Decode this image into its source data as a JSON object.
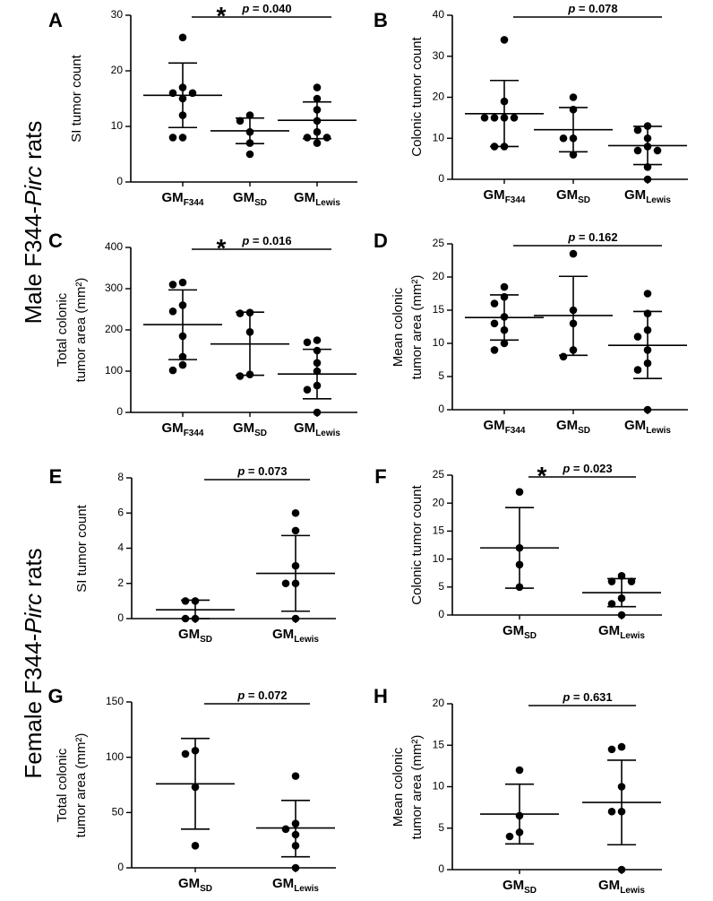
{
  "row_labels": [
    {
      "prefix": "Male F344-",
      "italic": "Pirc",
      "suffix": " rats"
    },
    {
      "prefix": "Female F344-",
      "italic": "Pirc",
      "suffix": " rats"
    }
  ],
  "chart_data": [
    {
      "panel": "A",
      "type": "scatter",
      "ylabel": [
        "SI tumor count"
      ],
      "ylim": [
        0,
        30
      ],
      "yticks": [
        0,
        10,
        20,
        30
      ],
      "categories": [
        {
          "base": "GM",
          "sub": "F344"
        },
        {
          "base": "GM",
          "sub": "SD"
        },
        {
          "base": "GM",
          "sub": "Lewis"
        }
      ],
      "groups": [
        {
          "points": [
            26,
            17,
            16,
            16,
            15,
            12,
            8,
            8
          ],
          "mean": 15.6,
          "sd_low": 9.8,
          "sd_high": 21.4
        },
        {
          "points": [
            12,
            11,
            9,
            7,
            5
          ],
          "mean": 9.2,
          "sd_low": 6.9,
          "sd_high": 11.5
        },
        {
          "points": [
            17,
            15,
            13,
            11,
            9,
            8,
            8,
            7
          ],
          "mean": 11.1,
          "sd_low": 7.8,
          "sd_high": 14.4
        }
      ],
      "significance": {
        "star": "*",
        "prefix": "p",
        "text": " = 0.040",
        "from": 0,
        "to": 2
      }
    },
    {
      "panel": "B",
      "type": "scatter",
      "ylabel": [
        "Colonic tumor count"
      ],
      "ylim": [
        0,
        40
      ],
      "yticks": [
        0,
        10,
        20,
        30,
        40
      ],
      "categories": [
        {
          "base": "GM",
          "sub": "F344"
        },
        {
          "base": "GM",
          "sub": "SD"
        },
        {
          "base": "GM",
          "sub": "Lewis"
        }
      ],
      "groups": [
        {
          "points": [
            34,
            19,
            15,
            15,
            15,
            15,
            8,
            8
          ],
          "mean": 16.0,
          "sd_low": 8.0,
          "sd_high": 24.1
        },
        {
          "points": [
            20,
            17,
            10,
            10,
            6
          ],
          "mean": 12.1,
          "sd_low": 6.7,
          "sd_high": 17.5
        },
        {
          "points": [
            13,
            12,
            10,
            8,
            7,
            7,
            3,
            0
          ],
          "mean": 8.2,
          "sd_low": 3.6,
          "sd_high": 12.9
        }
      ],
      "significance": {
        "star": "",
        "prefix": "p",
        "text": " = 0.078",
        "from": 0,
        "to": 2
      }
    },
    {
      "panel": "C",
      "type": "scatter",
      "ylabel": [
        "Total colonic",
        "tumor area (mm²)"
      ],
      "ylim": [
        0,
        400
      ],
      "yticks": [
        0,
        100,
        200,
        300,
        400
      ],
      "categories": [
        {
          "base": "GM",
          "sub": "F344"
        },
        {
          "base": "GM",
          "sub": "SD"
        },
        {
          "base": "GM",
          "sub": "Lewis"
        }
      ],
      "groups": [
        {
          "points": [
            315,
            310,
            260,
            245,
            185,
            135,
            115,
            102
          ],
          "mean": 213,
          "sd_low": 128,
          "sd_high": 297
        },
        {
          "points": [
            242,
            240,
            195,
            92,
            88
          ],
          "mean": 166,
          "sd_low": 90,
          "sd_high": 243
        },
        {
          "points": [
            175,
            170,
            150,
            120,
            100,
            65,
            55,
            0
          ],
          "mean": 93,
          "sd_low": 33,
          "sd_high": 153
        }
      ],
      "significance": {
        "star": "*",
        "prefix": "p",
        "text": " = 0.016",
        "from": 0,
        "to": 2
      }
    },
    {
      "panel": "D",
      "type": "scatter",
      "ylabel": [
        "Mean colonic",
        "tumor area (mm²)"
      ],
      "ylim": [
        0,
        25
      ],
      "yticks": [
        0,
        5,
        10,
        15,
        20,
        25
      ],
      "categories": [
        {
          "base": "GM",
          "sub": "F344"
        },
        {
          "base": "GM",
          "sub": "SD"
        },
        {
          "base": "GM",
          "sub": "Lewis"
        }
      ],
      "groups": [
        {
          "points": [
            18.5,
            17,
            16,
            14,
            13,
            12,
            10,
            9
          ],
          "mean": 13.9,
          "sd_low": 10.5,
          "sd_high": 17.3
        },
        {
          "points": [
            23.5,
            15,
            13,
            9,
            8
          ],
          "mean": 14.2,
          "sd_low": 8.2,
          "sd_high": 20.1
        },
        {
          "points": [
            17.5,
            14.5,
            12,
            11,
            9,
            7,
            6,
            0
          ],
          "mean": 9.7,
          "sd_low": 4.7,
          "sd_high": 14.8
        }
      ],
      "significance": {
        "star": "",
        "prefix": "p",
        "text": " = 0.162",
        "from": 0,
        "to": 2
      }
    },
    {
      "panel": "E",
      "type": "scatter",
      "ylabel": [
        "SI tumor count"
      ],
      "ylim": [
        0,
        8
      ],
      "yticks": [
        0,
        2,
        4,
        6,
        8
      ],
      "categories": [
        {
          "base": "GM",
          "sub": "SD"
        },
        {
          "base": "GM",
          "sub": "Lewis"
        }
      ],
      "groups": [
        {
          "points": [
            1,
            1,
            0,
            0
          ],
          "mean": 0.5,
          "sd_low": 0,
          "sd_high": 1.05
        },
        {
          "points": [
            6,
            5,
            3,
            2,
            2,
            0
          ],
          "mean": 2.57,
          "sd_low": 0.42,
          "sd_high": 4.72
        }
      ],
      "significance": {
        "star": "",
        "prefix": "p",
        "text": " = 0.073",
        "from": 0,
        "to": 1
      }
    },
    {
      "panel": "F",
      "type": "scatter",
      "ylabel": [
        "Colonic tumor count"
      ],
      "ylim": [
        0,
        25
      ],
      "yticks": [
        0,
        5,
        10,
        15,
        20,
        25
      ],
      "categories": [
        {
          "base": "GM",
          "sub": "SD"
        },
        {
          "base": "GM",
          "sub": "Lewis"
        }
      ],
      "groups": [
        {
          "points": [
            22,
            12,
            9,
            5
          ],
          "mean": 12.0,
          "sd_low": 4.8,
          "sd_high": 19.2
        },
        {
          "points": [
            7,
            6,
            6,
            3,
            2,
            0
          ],
          "mean": 4.0,
          "sd_low": 1.5,
          "sd_high": 6.5
        }
      ],
      "significance": {
        "star": "*",
        "prefix": "p",
        "text": " = 0.023",
        "from": 0,
        "to": 1
      }
    },
    {
      "panel": "G",
      "type": "scatter",
      "ylabel": [
        "Total colonic",
        "tumor area (mm²)"
      ],
      "ylim": [
        0,
        150
      ],
      "yticks": [
        0,
        50,
        100,
        150
      ],
      "categories": [
        {
          "base": "GM",
          "sub": "SD"
        },
        {
          "base": "GM",
          "sub": "Lewis"
        }
      ],
      "groups": [
        {
          "points": [
            106,
            103,
            73,
            20
          ],
          "mean": 76,
          "sd_low": 35,
          "sd_high": 117
        },
        {
          "points": [
            83,
            40,
            35,
            30,
            20,
            0
          ],
          "mean": 36,
          "sd_low": 10,
          "sd_high": 61
        }
      ],
      "significance": {
        "star": "",
        "prefix": "p",
        "text": " = 0.072",
        "from": 0,
        "to": 1
      }
    },
    {
      "panel": "H",
      "type": "scatter",
      "ylabel": [
        "Mean colonic",
        "tumor area (mm²)"
      ],
      "ylim": [
        0,
        20
      ],
      "yticks": [
        0,
        5,
        10,
        15,
        20
      ],
      "categories": [
        {
          "base": "GM",
          "sub": "SD"
        },
        {
          "base": "GM",
          "sub": "Lewis"
        }
      ],
      "groups": [
        {
          "points": [
            12,
            6.5,
            4.5,
            4
          ],
          "mean": 6.7,
          "sd_low": 3.1,
          "sd_high": 10.3
        },
        {
          "points": [
            14.8,
            14.5,
            10,
            7,
            7,
            0
          ],
          "mean": 8.1,
          "sd_low": 3.0,
          "sd_high": 13.2
        }
      ],
      "significance": {
        "star": "",
        "prefix": "p",
        "text": " = 0.631",
        "from": 0,
        "to": 1
      }
    }
  ]
}
